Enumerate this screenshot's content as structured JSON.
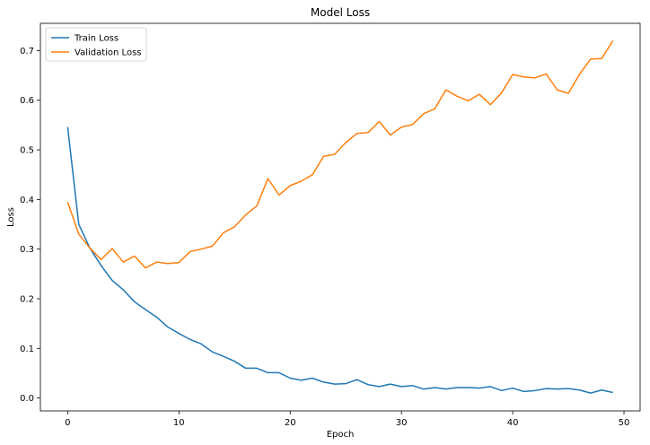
{
  "chart_data": {
    "type": "line",
    "title": "Model Loss",
    "xlabel": "Epoch",
    "ylabel": "Loss",
    "xlim": [
      -2.45,
      51.45
    ],
    "ylim": [
      -0.026,
      0.755
    ],
    "xticks": [
      0,
      10,
      20,
      30,
      40,
      50
    ],
    "yticks": [
      0.0,
      0.1,
      0.2,
      0.3,
      0.4,
      0.5,
      0.6,
      0.7
    ],
    "grid": false,
    "legend_position": "top-left",
    "series": [
      {
        "name": "Train Loss",
        "color": "#1f77b4",
        "x": [
          0,
          1,
          2,
          3,
          4,
          5,
          6,
          7,
          8,
          9,
          10,
          11,
          12,
          13,
          14,
          15,
          16,
          17,
          18,
          19,
          20,
          21,
          22,
          23,
          24,
          25,
          26,
          27,
          28,
          29,
          30,
          31,
          32,
          33,
          34,
          35,
          36,
          37,
          38,
          39,
          40,
          41,
          42,
          43,
          44,
          45,
          46,
          47,
          48,
          49
        ],
        "values": [
          0.546,
          0.35,
          0.302,
          0.267,
          0.237,
          0.218,
          0.194,
          0.178,
          0.163,
          0.143,
          0.13,
          0.118,
          0.109,
          0.093,
          0.084,
          0.074,
          0.06,
          0.06,
          0.051,
          0.051,
          0.04,
          0.036,
          0.04,
          0.032,
          0.028,
          0.029,
          0.037,
          0.027,
          0.023,
          0.028,
          0.023,
          0.025,
          0.018,
          0.021,
          0.018,
          0.021,
          0.021,
          0.02,
          0.023,
          0.015,
          0.02,
          0.013,
          0.015,
          0.019,
          0.018,
          0.019,
          0.016,
          0.01,
          0.016,
          0.011
        ]
      },
      {
        "name": "Validation Loss",
        "color": "#ff7f0e",
        "x": [
          0,
          1,
          2,
          3,
          4,
          5,
          6,
          7,
          8,
          9,
          10,
          11,
          12,
          13,
          14,
          15,
          16,
          17,
          18,
          19,
          20,
          21,
          22,
          23,
          24,
          25,
          26,
          27,
          28,
          29,
          30,
          31,
          32,
          33,
          34,
          35,
          36,
          37,
          38,
          39,
          40,
          41,
          42,
          43,
          44,
          45,
          46,
          47,
          48,
          49
        ],
        "values": [
          0.395,
          0.33,
          0.302,
          0.279,
          0.301,
          0.274,
          0.286,
          0.262,
          0.274,
          0.271,
          0.273,
          0.295,
          0.3,
          0.306,
          0.333,
          0.345,
          0.369,
          0.387,
          0.442,
          0.409,
          0.428,
          0.437,
          0.45,
          0.487,
          0.491,
          0.515,
          0.533,
          0.535,
          0.557,
          0.53,
          0.546,
          0.551,
          0.573,
          0.583,
          0.621,
          0.608,
          0.599,
          0.612,
          0.591,
          0.615,
          0.652,
          0.647,
          0.645,
          0.653,
          0.621,
          0.614,
          0.652,
          0.683,
          0.684,
          0.72
        ]
      }
    ]
  }
}
